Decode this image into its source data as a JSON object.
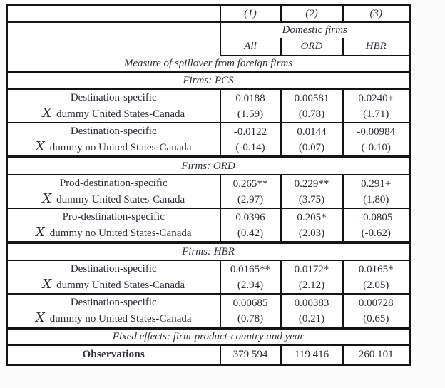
{
  "table": {
    "x_symbol": "X",
    "columns": [
      "(1)",
      "(2)",
      "(3)"
    ],
    "group_header": "Domestic firms",
    "subcolumns": [
      "All",
      "ORD",
      "HBR"
    ],
    "spillover_header": "Measure of spillover from foreign firms",
    "sections": [
      {
        "title": "Firms: PCS",
        "rows": [
          {
            "label1": "Destination-specific",
            "label2": "dummy United States-Canada",
            "values": [
              "0.0188",
              "0.00581",
              "0.0240+"
            ],
            "tstats": [
              "(1.59)",
              "(0.78)",
              "(1.71)"
            ]
          },
          {
            "label1": "Destination-specific",
            "label2": "dummy no United States-Canada",
            "values": [
              "-0.0122",
              "0.0144",
              "-0.00984"
            ],
            "tstats": [
              "(-0.14)",
              "(0.07)",
              "(-0.10)"
            ]
          }
        ]
      },
      {
        "title": "Firms: ORD",
        "rows": [
          {
            "label1": "Prod-destination-specific",
            "label2": "dummy United States-Canada",
            "values": [
              "0.265**",
              "0.229**",
              "0.291+"
            ],
            "tstats": [
              "(2.97)",
              "(3.75)",
              "(1.80)"
            ]
          },
          {
            "label1": "Pro-destination-specific",
            "label2": "dummy no United States-Canada",
            "values": [
              "0.0396",
              "0.205*",
              "-0.0805"
            ],
            "tstats": [
              "(0.42)",
              "(2.03)",
              "(-0.62)"
            ]
          }
        ]
      },
      {
        "title": "Firms: HBR",
        "rows": [
          {
            "label1": "Destination-specific",
            "label2": "dummy United States-Canada",
            "values": [
              "0.0165**",
              "0.0172*",
              "0.0165*"
            ],
            "tstats": [
              "(2.94)",
              "(2.12)",
              "(2.05)"
            ]
          },
          {
            "label1": "Destination-specific",
            "label2": "dummy no United States-Canada",
            "values": [
              "0.00685",
              "0.00383",
              "0.00728"
            ],
            "tstats": [
              "(0.78)",
              "(0.21)",
              "(0.65)"
            ]
          }
        ]
      }
    ],
    "fixed_effects": "Fixed effects: firm-product-country and year",
    "observations_label": "Observations",
    "observations": [
      "379 594",
      "119 416",
      "260 101"
    ]
  }
}
